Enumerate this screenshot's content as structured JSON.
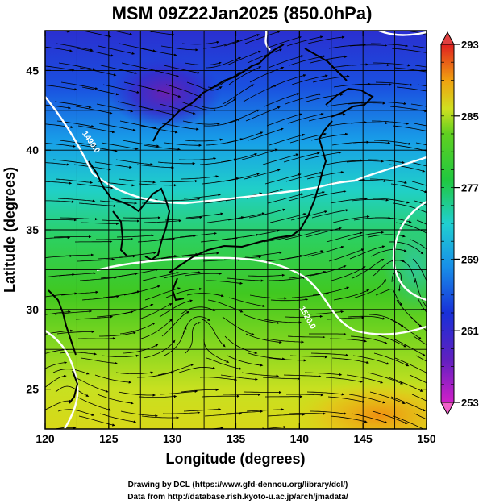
{
  "title": "MSM 09Z22Jan2025 (850.0hPa)",
  "x_axis": {
    "label": "Longitude (degrees)",
    "range": [
      120,
      150
    ],
    "ticks": [
      "120",
      "125",
      "130",
      "135",
      "140",
      "145",
      "150"
    ]
  },
  "y_axis": {
    "label": "Latitude  (degrees)",
    "range": [
      22.5,
      47.5
    ],
    "ticks": [
      "25",
      "30",
      "35",
      "40",
      "45"
    ]
  },
  "colorbar": {
    "range": [
      253,
      293
    ],
    "ticks": [
      "293",
      "285",
      "277",
      "269",
      "261",
      "253"
    ]
  },
  "contour_labels": {
    "north": "1490.0",
    "south": "1520.0"
  },
  "footer": {
    "line1": "Drawing by DCL (https://www.gfd-dennou.org/library/dcl/)",
    "line2": "Data from http://database.rish.kyoto-u.ac.jp/arch/jmadata/"
  },
  "colors": {
    "violet": "#7a1fb8",
    "blue": "#1838d8",
    "cyan": "#20c8d8",
    "green": "#20c030",
    "yellow": "#e0e020",
    "orange": "#f08010",
    "red": "#e02020",
    "contour": "#ffffff"
  }
}
